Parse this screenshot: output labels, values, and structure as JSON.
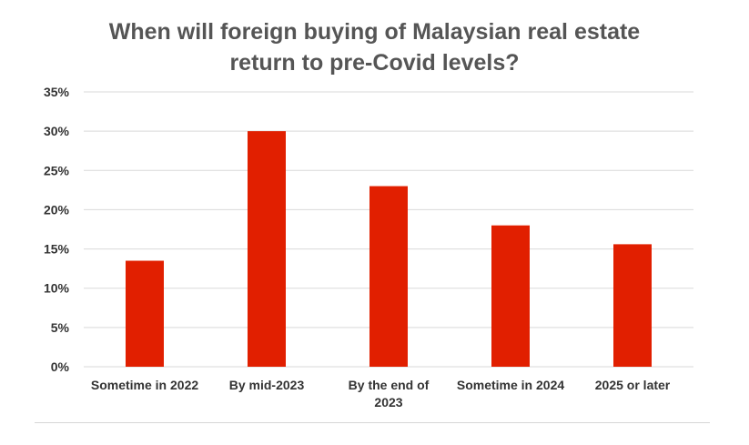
{
  "chart_data": {
    "type": "bar",
    "title": "When will foreign buying of Malaysian real estate return to pre-Covid levels?",
    "title_lines": [
      "When will foreign buying of Malaysian real estate",
      "return to pre-Covid levels?"
    ],
    "categories": [
      [
        "Sometime in 2022"
      ],
      [
        "By mid-2023"
      ],
      [
        "By the end of",
        "2023"
      ],
      [
        "Sometime in 2024"
      ],
      [
        "2025 or later"
      ]
    ],
    "values": [
      13.5,
      30,
      23,
      18,
      15.6
    ],
    "y_ticks": [
      "0%",
      "5%",
      "10%",
      "15%",
      "20%",
      "25%",
      "30%",
      "35%"
    ],
    "ylim": [
      0,
      35
    ],
    "y_tick_step": 5,
    "xlabel": "",
    "ylabel": "",
    "grid": true,
    "legend": "none",
    "colors": {
      "bar": "#e11f00",
      "grid": "#d9d9d9",
      "text": "#555555",
      "tick_text": "#333333"
    }
  }
}
